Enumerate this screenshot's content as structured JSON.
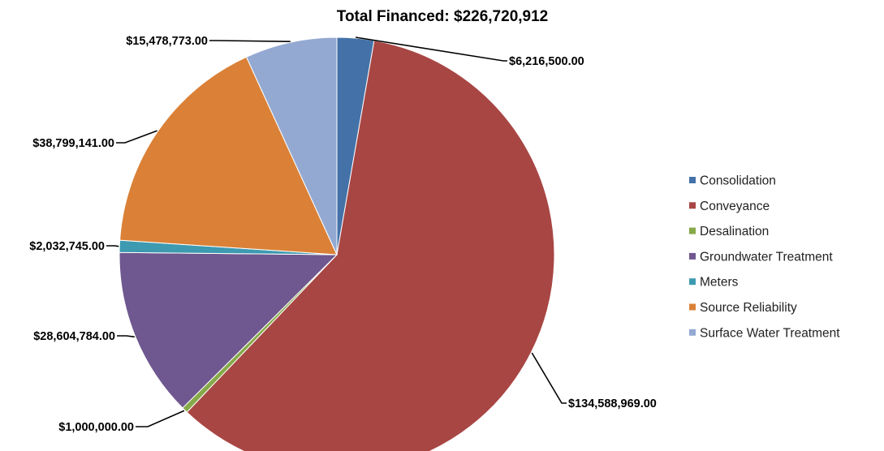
{
  "chart_data": {
    "type": "pie",
    "title": "Total Financed: $226,720,912",
    "categories": [
      "Consolidation",
      "Conveyance",
      "Desalination",
      "Groundwater Treatment",
      "Meters",
      "Source Reliability",
      "Surface Water Treatment"
    ],
    "values": [
      6216500.0,
      134588969.0,
      1000000.0,
      28604784.0,
      2032745.0,
      38799141.0,
      15478773.0
    ],
    "data_labels": [
      "$6,216,500.00",
      "$134,588,969.00",
      "$1,000,000.00",
      "$28,604,784.00",
      "$2,032,745.00",
      "$38,799,141.00",
      "$15,478,773.00"
    ],
    "colors": [
      "#4472A8",
      "#A84643",
      "#87A94A",
      "#6F578F",
      "#3E9AB0",
      "#DA8137",
      "#94A9D2"
    ],
    "start_angle": "12 o'clock",
    "direction": "clockwise",
    "legend_position": "right"
  }
}
